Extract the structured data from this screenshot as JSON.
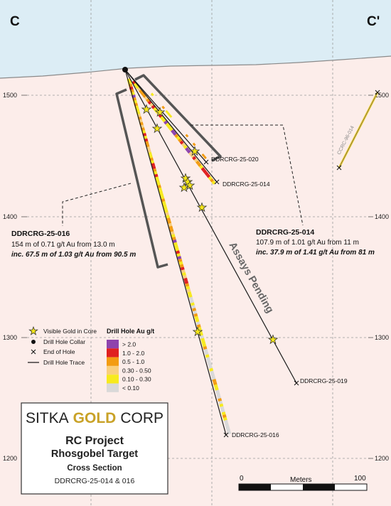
{
  "section": {
    "left_label": "C",
    "right_label": "C'"
  },
  "elevation_ticks": {
    "left": [
      "1500",
      "1400",
      "1300",
      "1200"
    ],
    "right": [
      "1500",
      "1400",
      "1300",
      "1200"
    ]
  },
  "colors": {
    "sky": "#dcedf5",
    "ground": "#fcedea",
    "grid": "#999999",
    "brand_gold": "#c9a227",
    "star": "#f5e61a"
  },
  "holes": {
    "h020": {
      "label": "DDRCRG-25-020"
    },
    "h014": {
      "label": "DDRCRG-25-014"
    },
    "h019": {
      "label": "DDRCRG-25-019"
    },
    "h016": {
      "label": "DDRCRG-25-016"
    },
    "ccrc": {
      "label": "CCRC-96-014"
    }
  },
  "annotations": {
    "hole_016": {
      "title": "DDRCRG-25-016",
      "line1": "154 m of 0.71 g/t Au from 13.0 m",
      "line2": "inc. 67.5 m of 1.03 g/t Au from 90.5 m"
    },
    "hole_014": {
      "title": "DDRCRG-25-014",
      "line1": "107.9 m of 1.01 g/t Au from 11 m",
      "line2": "inc. 37.9 m of 1.41 g/t Au from 81 m"
    },
    "assays_pending": "Assays Pending"
  },
  "legend": {
    "symbols": [
      {
        "icon": "star-icon",
        "label": "Visible Gold in Core"
      },
      {
        "icon": "dot-icon",
        "label": "Drill Hole Collar"
      },
      {
        "icon": "x-icon",
        "label": "End of Hole"
      },
      {
        "icon": "line-icon",
        "label": "Drill Hole Trace"
      }
    ],
    "grade_title": "Drill Hole Au g/t",
    "grades": [
      {
        "label": "> 2.0",
        "color": "#8e44ad"
      },
      {
        "label": "1.0 - 2.0",
        "color": "#e02020"
      },
      {
        "label": "0.5 - 1.0",
        "color": "#f39c12"
      },
      {
        "label": "0.30 - 0.50",
        "color": "#f9cf7e"
      },
      {
        "label": "0.10 - 0.30",
        "color": "#f7ea1e"
      },
      {
        "label": "< 0.10",
        "color": "#d9d9d9"
      }
    ]
  },
  "title_block": {
    "brand_left": "SITKA",
    "brand_mid": "GOLD",
    "brand_right": "CORP",
    "project": "RC Project",
    "target": "Rhosgobel Target",
    "section_type": "Cross Section",
    "holes": "DDRCRG-25-014 & 016"
  },
  "scale_bar": {
    "start": "0",
    "unit": "Meters",
    "end": "100"
  }
}
